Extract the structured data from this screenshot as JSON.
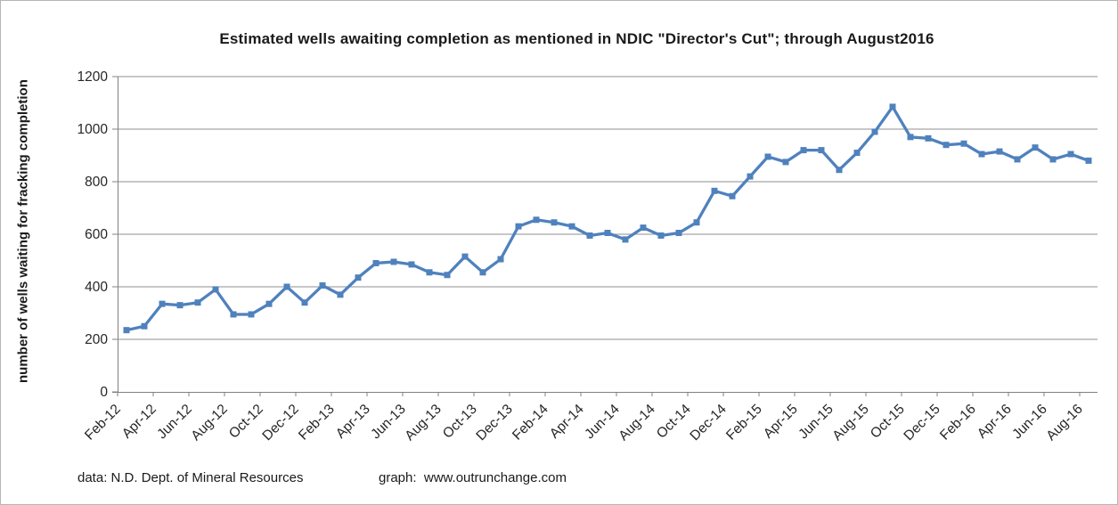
{
  "chart_data": {
    "type": "line",
    "title": "Estimated wells awaiting completion as mentioned in NDIC \"Director's Cut\"; through  August2016",
    "xlabel": "",
    "ylabel": "number of wells waiting for fracking completion",
    "ylim": [
      0,
      1200
    ],
    "y_ticks": [
      0,
      200,
      400,
      600,
      800,
      1000,
      1200
    ],
    "x_label_every": 2,
    "grid": "horizontal",
    "legend": "none",
    "categories": [
      "Feb-12",
      "Mar-12",
      "Apr-12",
      "May-12",
      "Jun-12",
      "Jul-12",
      "Aug-12",
      "Sep-12",
      "Oct-12",
      "Nov-12",
      "Dec-12",
      "Jan-13",
      "Feb-13",
      "Mar-13",
      "Apr-13",
      "May-13",
      "Jun-13",
      "Jul-13",
      "Aug-13",
      "Sep-13",
      "Oct-13",
      "Nov-13",
      "Dec-13",
      "Jan-14",
      "Feb-14",
      "Mar-14",
      "Apr-14",
      "May-14",
      "Jun-14",
      "Jul-14",
      "Aug-14",
      "Sep-14",
      "Oct-14",
      "Nov-14",
      "Dec-14",
      "Jan-15",
      "Feb-15",
      "Mar-15",
      "Apr-15",
      "May-15",
      "Jun-15",
      "Jul-15",
      "Aug-15",
      "Sep-15",
      "Oct-15",
      "Nov-15",
      "Dec-15",
      "Jan-16",
      "Feb-16",
      "Mar-16",
      "Apr-16",
      "May-16",
      "Jun-16",
      "Jul-16",
      "Aug-16"
    ],
    "values": [
      235,
      250,
      335,
      330,
      340,
      390,
      295,
      295,
      335,
      400,
      340,
      405,
      370,
      435,
      490,
      495,
      485,
      455,
      445,
      515,
      455,
      505,
      630,
      655,
      645,
      630,
      595,
      605,
      580,
      625,
      595,
      605,
      645,
      765,
      745,
      820,
      895,
      875,
      920,
      920,
      845,
      910,
      990,
      1085,
      970,
      965,
      940,
      945,
      905,
      915,
      885,
      930,
      885,
      905,
      880
    ],
    "colors": {
      "series": "#4F81BD",
      "gridline": "#8f8f8f",
      "axis": "#808080",
      "tick_text": "#262626"
    },
    "marker": "square"
  },
  "footer": {
    "data_source": "data: N.D. Dept. of Mineral Resources",
    "graph_credit": "graph:  www.outrunchange.com"
  }
}
